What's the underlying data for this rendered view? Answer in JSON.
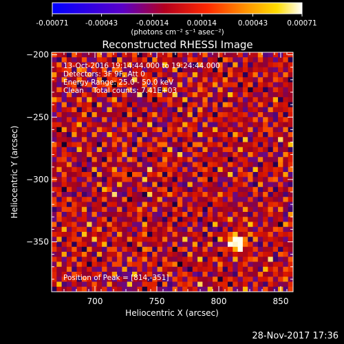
{
  "chart_data": {
    "type": "heatmap",
    "title": "Reconstructed RHESSI Image",
    "xlabel": "Heliocentric X (arcsec)",
    "ylabel": "Heliocentric Y (arcsec)",
    "xlim": [
      665,
      860
    ],
    "ylim": [
      -390,
      -198
    ],
    "x_ticks": [
      700,
      750,
      800,
      850
    ],
    "y_ticks": [
      -200,
      -250,
      -300,
      -350
    ],
    "annotations": [
      "13-Oct-2016 19:14:44.000 to 19:24:44.000",
      "Detectors: 3F 9F, Att 0",
      "Energy Range: 25.0 - 50.0 keV",
      "Clean    Total counts: 7.41E+03"
    ],
    "peak_label": "Position of Peak = [814,-351]",
    "peak_position": [
      814,
      -351
    ],
    "colorbar": {
      "min": -0.00071,
      "max": 0.00071,
      "tick_values": [
        -0.00071,
        -0.00043,
        -0.00014,
        0.00014,
        0.00043,
        0.00071
      ],
      "tick_labels": [
        "-0.00071",
        "-0.00043",
        "-0.00014",
        "0.00014",
        "0.00043",
        "0.00071"
      ],
      "unit_label": "(photons cm⁻² s⁻¹ asec⁻²)"
    },
    "colormap": "black-blue-purple-red-orange-yellow-white",
    "grid": false
  },
  "footer": {
    "timestamp": "28-Nov-2017 17:36"
  }
}
